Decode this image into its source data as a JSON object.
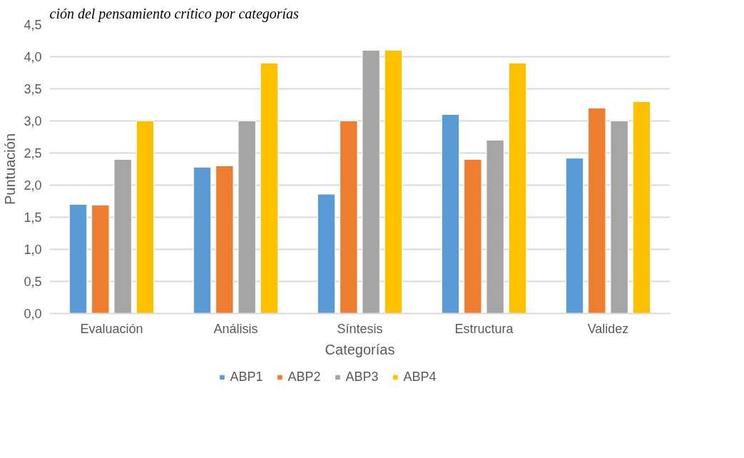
{
  "chart_data": {
    "type": "bar",
    "title": "ción del pensamiento crítico por categorías",
    "xlabel": "Categorías",
    "ylabel": "Puntuación",
    "categories": [
      "Evaluación",
      "Análisis",
      "Síntesis",
      "Estructura",
      "Validez"
    ],
    "series": [
      {
        "name": "ABP1",
        "color": "#5b9bd5",
        "values": [
          1.7,
          2.28,
          1.86,
          3.1,
          2.42
        ]
      },
      {
        "name": "ABP2",
        "color": "#ed7d31",
        "values": [
          1.69,
          2.3,
          3.0,
          2.4,
          3.2
        ]
      },
      {
        "name": "ABP3",
        "color": "#a5a5a5",
        "values": [
          2.4,
          3.0,
          4.1,
          2.7,
          3.0
        ]
      },
      {
        "name": "ABP4",
        "color": "#ffc000",
        "values": [
          3.0,
          3.9,
          4.1,
          3.9,
          3.3
        ]
      }
    ],
    "ylim": [
      0,
      4.5
    ],
    "yticks": [
      {
        "value": 0,
        "label": "0,0"
      },
      {
        "value": 0.5,
        "label": "0,5"
      },
      {
        "value": 1,
        "label": "1,0"
      },
      {
        "value": 1.5,
        "label": "1,5"
      },
      {
        "value": 2,
        "label": "2,0"
      },
      {
        "value": 2.5,
        "label": "2,5"
      },
      {
        "value": 3,
        "label": "3,0"
      },
      {
        "value": 3.5,
        "label": "3,5"
      },
      {
        "value": 4,
        "label": "4,0"
      },
      {
        "value": 4.5,
        "label": "4,5"
      }
    ],
    "grid": "y",
    "legend": "bottom"
  }
}
